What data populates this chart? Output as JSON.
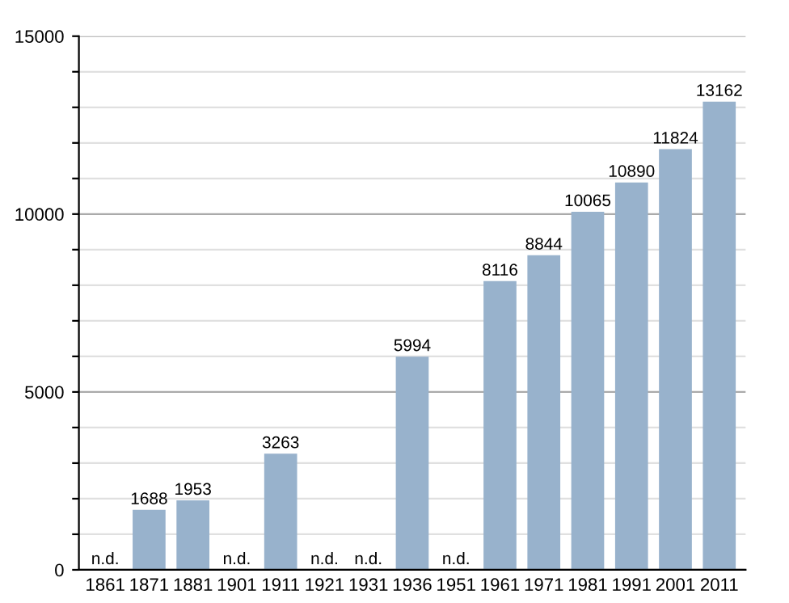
{
  "chart_data": {
    "type": "bar",
    "categories": [
      "1861",
      "1871",
      "1881",
      "1901",
      "1911",
      "1921",
      "1931",
      "1936",
      "1951",
      "1961",
      "1971",
      "1981",
      "1991",
      "2001",
      "2011"
    ],
    "values": [
      null,
      1688,
      1953,
      null,
      3263,
      null,
      null,
      5994,
      null,
      8116,
      8844,
      10065,
      10890,
      11824,
      13162
    ],
    "value_labels": [
      "n.d.",
      "1688",
      "1953",
      "n.d.",
      "3263",
      "n.d.",
      "n.d.",
      "5994",
      "n.d.",
      "8116",
      "8844",
      "10065",
      "10890",
      "11824",
      "13162"
    ],
    "color": "#98b2cc",
    "ylim": [
      0,
      15000
    ],
    "yticks": [
      0,
      {
        "value": 1000,
        "label": null
      },
      {
        "value": 2000,
        "label": null
      },
      {
        "value": 3000,
        "label": null
      },
      {
        "value": 4000,
        "label": null
      },
      5000,
      {
        "value": 6000,
        "label": null
      },
      {
        "value": 7000,
        "label": null
      },
      {
        "value": 8000,
        "label": null
      },
      {
        "value": 9000,
        "label": null
      },
      10000,
      {
        "value": 11000,
        "label": null
      },
      {
        "value": 12000,
        "label": null
      },
      {
        "value": 13000,
        "label": null
      },
      {
        "value": 14000,
        "label": null
      },
      15000
    ],
    "grid": "y"
  }
}
